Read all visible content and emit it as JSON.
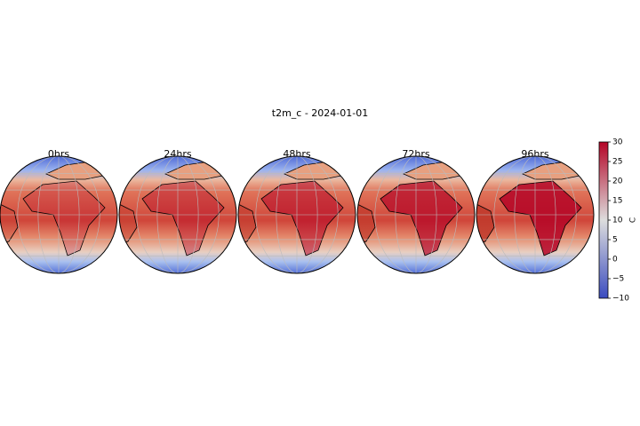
{
  "title": "t2m_c - 2024-01-01",
  "panels": [
    {
      "title": "0hrs"
    },
    {
      "title": "24hrs"
    },
    {
      "title": "48hrs"
    },
    {
      "title": "72hrs"
    },
    {
      "title": "96hrs"
    }
  ],
  "colorbar": {
    "label": "C",
    "lim": [
      -10,
      30
    ],
    "ticks": [
      {
        "value": -10,
        "label": "−10"
      },
      {
        "value": -5,
        "label": "−5"
      },
      0,
      5,
      10,
      15,
      20,
      25,
      30
    ],
    "colors": [
      "#3b4cc0",
      "#dddddd",
      "#b40426"
    ]
  }
}
